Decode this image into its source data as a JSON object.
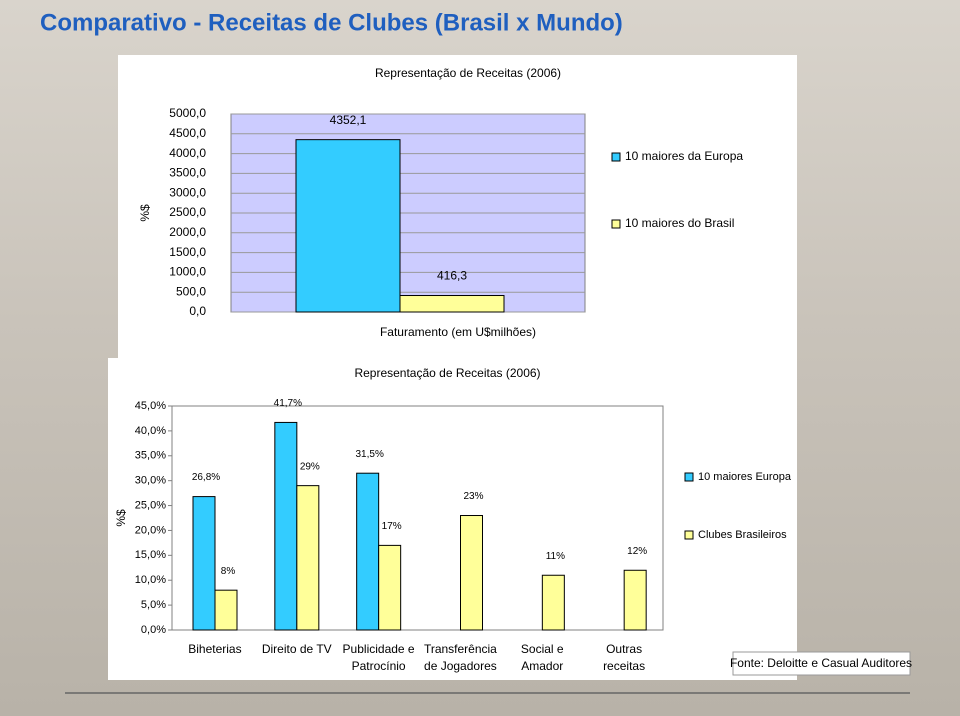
{
  "title": "Comparativo - Receitas de Clubes (Brasil x Mundo)",
  "source": "Fonte: Deloitte e Casual Auditores",
  "chart_data": [
    {
      "type": "bar",
      "title": "Representação de Receitas (2006)",
      "y_label": "%$",
      "x_label": "Faturamento (em U$milhões)",
      "categories": [
        null
      ],
      "series": [
        {
          "name": "10 maiores da Europa",
          "color": "#33ccff",
          "values": [
            4352.1
          ],
          "value_labels": [
            "4352,1"
          ]
        },
        {
          "name": "10 maiores do Brasil",
          "color": "#ffff99",
          "values": [
            416.3
          ],
          "value_labels": [
            "416,3"
          ]
        }
      ],
      "ylim": [
        0,
        5000
      ],
      "yticks": [
        {
          "value": 0,
          "label": "0,0"
        },
        {
          "value": 500,
          "label": "500,0"
        },
        {
          "value": 1000,
          "label": "1000,0"
        },
        {
          "value": 1500,
          "label": "1500,0"
        },
        {
          "value": 2000,
          "label": "2000,0"
        },
        {
          "value": 2500,
          "label": "2500,0"
        },
        {
          "value": 3000,
          "label": "3000,0"
        },
        {
          "value": 3500,
          "label": "3500,0"
        },
        {
          "value": 4000,
          "label": "4000,0"
        },
        {
          "value": 4500,
          "label": "4500,0"
        },
        {
          "value": 5000,
          "label": "5000,0"
        }
      ],
      "grid": true,
      "plot_background": "#ccccff"
    },
    {
      "type": "bar",
      "title": "Representação de Receitas (2006)",
      "y_label": "%$",
      "categories": [
        "Biheterias",
        "Direito de TV",
        "Publicidade e\nPatrocínio",
        "Transferência\nde Jogadores",
        "Social e\nAmador",
        "Outras\nreceitas"
      ],
      "series": [
        {
          "name": "10 maiores Europa",
          "color": "#33ccff",
          "values": [
            26.8,
            41.7,
            31.5,
            null,
            null,
            null
          ],
          "value_labels": [
            "26,8%",
            "41,7%",
            "31,5%",
            null,
            null,
            null
          ]
        },
        {
          "name": "Clubes Brasileiros",
          "color": "#ffff99",
          "values": [
            8,
            29,
            17,
            23,
            11,
            12
          ],
          "value_labels": [
            "8%",
            "29%",
            "17%",
            "23%",
            "11%",
            "12%"
          ]
        }
      ],
      "ylim": [
        0,
        45
      ],
      "yticks": [
        {
          "value": 0,
          "label": "0,0%"
        },
        {
          "value": 5,
          "label": "5,0%"
        },
        {
          "value": 10,
          "label": "10,0%"
        },
        {
          "value": 15,
          "label": "15,0%"
        },
        {
          "value": 20,
          "label": "20,0%"
        },
        {
          "value": 25,
          "label": "25,0%"
        },
        {
          "value": 30,
          "label": "30,0%"
        },
        {
          "value": 35,
          "label": "35,0%"
        },
        {
          "value": 40,
          "label": "40,0%"
        },
        {
          "value": 45,
          "label": "45,0%"
        }
      ],
      "grid": false,
      "plot_background": "#ffffff"
    }
  ]
}
